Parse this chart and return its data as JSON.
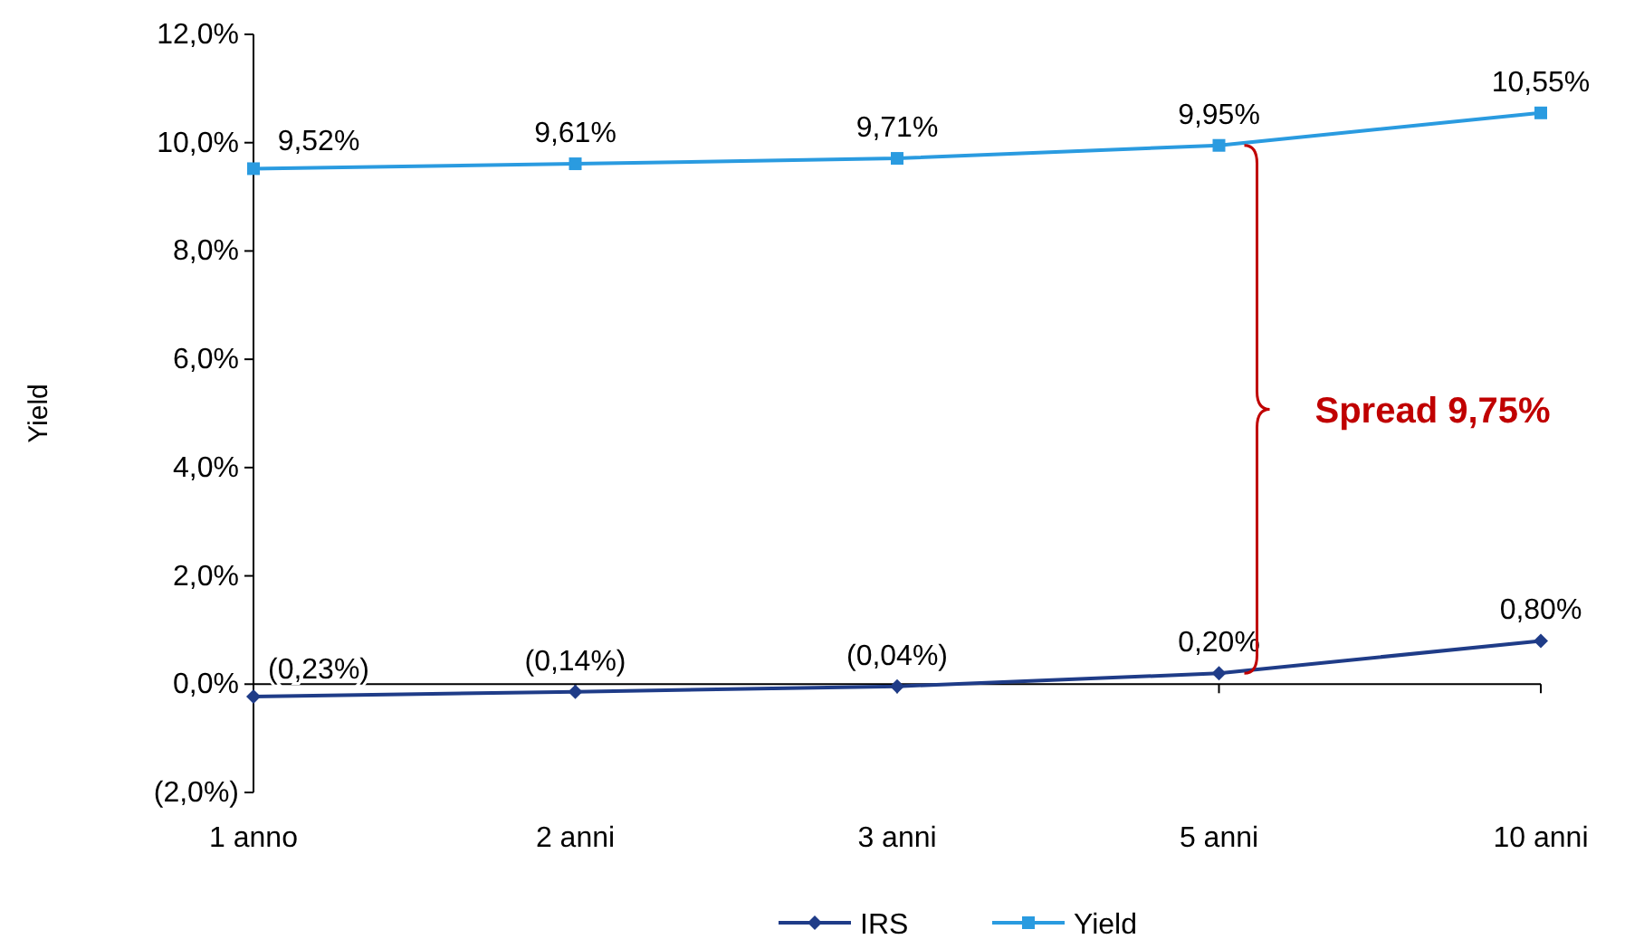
{
  "chart_data": {
    "type": "line",
    "ylabel": "Yield",
    "categories": [
      "1 anno",
      "2 anni",
      "3 anni",
      "5 anni",
      "10 anni"
    ],
    "series": [
      {
        "name": "IRS",
        "color": "#1f3c88",
        "marker": "diamond",
        "values": [
          -0.23,
          -0.14,
          -0.04,
          0.2,
          0.8
        ],
        "value_labels": [
          "(0,23%)",
          "(0,14%)",
          "(0,04%)",
          "0,20%",
          "0,80%"
        ]
      },
      {
        "name": "Yield",
        "color": "#2a9be0",
        "marker": "square",
        "values": [
          9.52,
          9.61,
          9.71,
          9.95,
          10.55
        ],
        "value_labels": [
          "9,52%",
          "9,61%",
          "9,71%",
          "9,95%",
          "10,55%"
        ]
      }
    ],
    "ylim": [
      -2,
      12
    ],
    "yticks": [
      {
        "value": -2,
        "label": "(2,0%)"
      },
      {
        "value": 0,
        "label": "0,0%"
      },
      {
        "value": 2,
        "label": "2,0%"
      },
      {
        "value": 4,
        "label": "4,0%"
      },
      {
        "value": 6,
        "label": "6,0%"
      },
      {
        "value": 8,
        "label": "8,0%"
      },
      {
        "value": 10,
        "label": "10,0%"
      },
      {
        "value": 12,
        "label": "12,0%"
      }
    ],
    "legend": "bottom",
    "annotations": [
      "Spread 9,75%"
    ]
  }
}
